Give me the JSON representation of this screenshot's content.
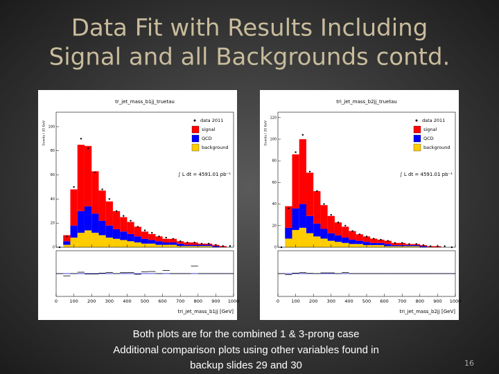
{
  "slide": {
    "title_lines": [
      "Data Fit with Results Including",
      "Signal and all Backgrounds contd."
    ],
    "caption_lines": [
      "Both plots are for the combined 1 & 3-prong case",
      "Additional comparison plots using other variables found in",
      "backup slides 29 and 30"
    ],
    "page_number": "16"
  },
  "chart_data": [
    {
      "type": "stacked_histogram",
      "title": "tr_jet_mass_b1jj_truetau",
      "xlabel": "tri_jet_mass_b1jj [GeV]",
      "ylabel": "Events / 20 GeV",
      "annotation": "∫ L dt = 4591.01 pb⁻¹",
      "bins": [
        0,
        40,
        80,
        120,
        160,
        200,
        240,
        280,
        320,
        360,
        400,
        440,
        480,
        520,
        560,
        600,
        640,
        680,
        720,
        760,
        800,
        840,
        880,
        920,
        960,
        1000
      ],
      "xlim": [
        0,
        1000
      ],
      "xticks": [
        0,
        100,
        200,
        300,
        400,
        500,
        600,
        700,
        800,
        900,
        1000
      ],
      "ylim": [
        0,
        112
      ],
      "yticks": [
        0,
        20,
        40,
        60,
        80,
        100
      ],
      "legend": "upper right",
      "series": [
        {
          "name": "background",
          "color": "#ffcc00",
          "values": [
            0,
            2,
            8,
            12,
            14,
            12,
            10,
            8,
            7,
            6,
            5,
            4,
            3,
            3,
            2,
            2,
            2,
            1,
            1,
            1,
            1,
            1,
            0,
            0,
            0
          ]
        },
        {
          "name": "QCD",
          "color": "#0000ff",
          "values": [
            0,
            3,
            10,
            18,
            20,
            16,
            12,
            10,
            8,
            7,
            6,
            5,
            4,
            3,
            3,
            2,
            2,
            2,
            1,
            1,
            1,
            1,
            1,
            0,
            0
          ]
        },
        {
          "name": "signal",
          "color": "#ff0000",
          "values": [
            0,
            5,
            30,
            55,
            50,
            35,
            25,
            20,
            15,
            12,
            10,
            8,
            6,
            5,
            4,
            3,
            3,
            2,
            2,
            2,
            1,
            1,
            1,
            1,
            0
          ]
        }
      ],
      "data_series": {
        "name": "data 2011",
        "color": "#000000",
        "values": [
          0,
          9,
          50,
          90,
          82,
          62,
          48,
          40,
          30,
          26,
          22,
          17,
          14,
          12,
          9,
          8,
          7,
          5,
          4,
          4,
          3,
          3,
          2,
          1,
          1
        ]
      },
      "ratio": {
        "values": [
          1.0,
          0.9,
          1.0,
          1.06,
          0.98,
          0.98,
          1.02,
          1.05,
          1.0,
          1.04,
          1.05,
          0.97,
          1.08,
          1.09,
          1.0,
          1.14,
          1.0,
          1.0,
          1.0,
          1.33,
          1.0,
          1.0,
          1.0,
          1.0,
          1.0
        ],
        "ylim": [
          0,
          2
        ],
        "reference": 1
      }
    },
    {
      "type": "stacked_histogram",
      "title": "tri_jet_mass_b2jj_truetau",
      "xlabel": "tri_jet_mass_b2jj [GeV]",
      "ylabel": "Events / 20 GeV",
      "annotation": "∫ L dt = 4591.01 pb⁻¹",
      "bins": [
        0,
        40,
        80,
        120,
        160,
        200,
        240,
        280,
        320,
        360,
        400,
        440,
        480,
        520,
        560,
        600,
        640,
        680,
        720,
        760,
        800,
        840,
        880,
        920,
        960,
        1000
      ],
      "xlim": [
        0,
        1000
      ],
      "xticks": [
        0,
        100,
        200,
        300,
        400,
        500,
        600,
        700,
        800,
        900,
        1000
      ],
      "ylim": [
        0,
        125
      ],
      "yticks": [
        0,
        20,
        40,
        60,
        80,
        100,
        120
      ],
      "legend": "upper right",
      "series": [
        {
          "name": "background",
          "color": "#ffcc00",
          "values": [
            0,
            8,
            16,
            18,
            13,
            10,
            8,
            6,
            5,
            4,
            3,
            3,
            2,
            2,
            2,
            1,
            1,
            1,
            1,
            1,
            0,
            0,
            0,
            0,
            0
          ]
        },
        {
          "name": "QCD",
          "color": "#0000ff",
          "values": [
            0,
            10,
            20,
            22,
            16,
            12,
            9,
            7,
            6,
            5,
            4,
            3,
            3,
            2,
            2,
            2,
            1,
            1,
            1,
            1,
            1,
            0,
            0,
            0,
            0
          ]
        },
        {
          "name": "signal",
          "color": "#ff0000",
          "values": [
            0,
            20,
            50,
            60,
            40,
            30,
            22,
            16,
            12,
            10,
            8,
            6,
            5,
            4,
            3,
            3,
            2,
            2,
            1,
            1,
            1,
            1,
            1,
            0,
            0
          ]
        }
      ],
      "data_series": {
        "name": "data 2011",
        "color": "#000000",
        "values": [
          0,
          36,
          88,
          104,
          70,
          52,
          40,
          30,
          23,
          20,
          15,
          12,
          10,
          8,
          7,
          6,
          4,
          4,
          3,
          3,
          2,
          1,
          1,
          1,
          0
        ]
      },
      "ratio": {
        "values": [
          1.0,
          0.95,
          1.02,
          1.04,
          1.01,
          1.0,
          1.03,
          1.03,
          1.0,
          1.05,
          1.0,
          1.0,
          1.0,
          1.0,
          1.0,
          1.0,
          1.0,
          1.0,
          1.0,
          1.0,
          1.0,
          1.0,
          1.0,
          1.0,
          1.0
        ],
        "ylim": [
          0,
          2
        ],
        "reference": 1
      }
    }
  ]
}
